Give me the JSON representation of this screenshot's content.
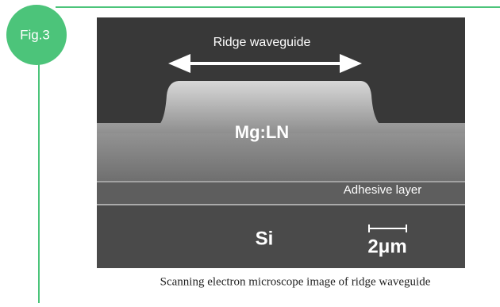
{
  "figure": {
    "label": "Fig.3",
    "annotations": {
      "ridge": "Ridge waveguide",
      "core": "Mg:LN",
      "adhesive": "Adhesive layer",
      "substrate": "Si",
      "scale": "2μm"
    },
    "caption": "Scanning electron microscope image of ridge waveguide"
  }
}
